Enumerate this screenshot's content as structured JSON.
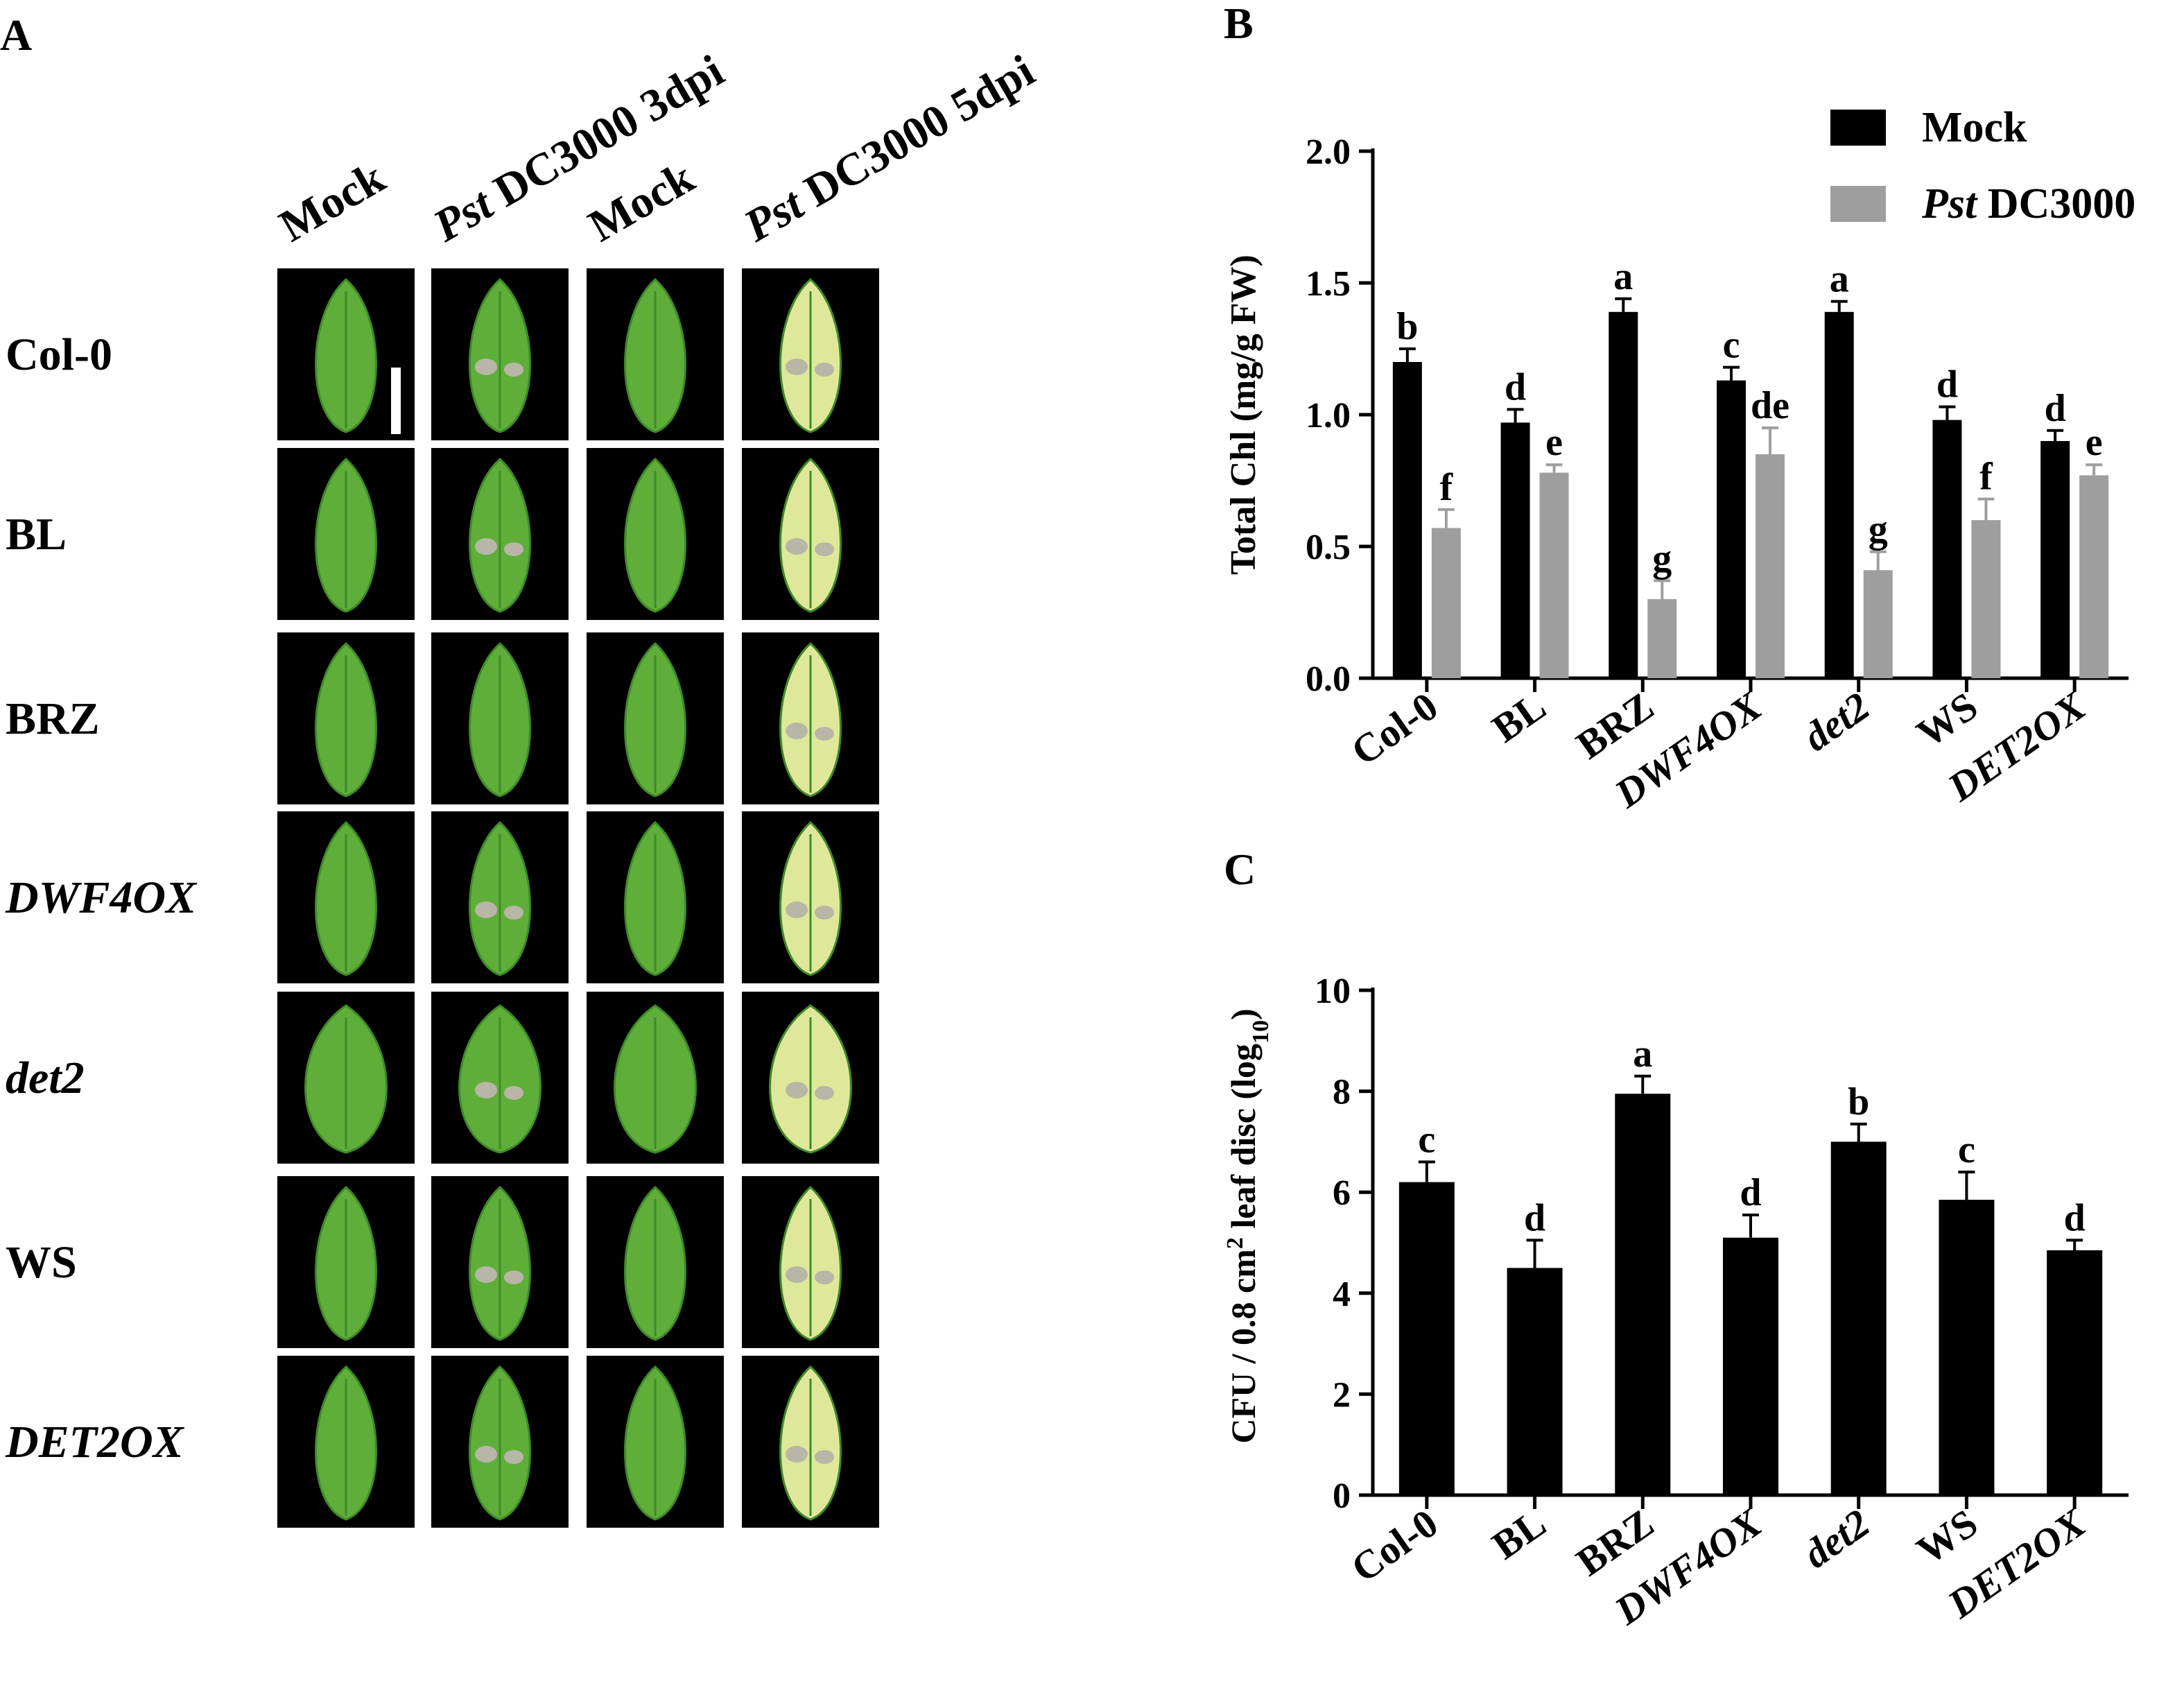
{
  "panels": {
    "A": {
      "label": "A",
      "columns": [
        {
          "prefix": "",
          "text": "Mock"
        },
        {
          "prefix": "Pst",
          "text": " DC3000 3dpi"
        },
        {
          "prefix": "",
          "text": "Mock"
        },
        {
          "prefix": "Pst",
          "text": " DC3000 5dpi"
        }
      ],
      "rows": [
        {
          "label": "Col-0",
          "italic": false,
          "lesions": [
            false,
            true,
            false,
            true
          ]
        },
        {
          "label": "BL",
          "italic": false,
          "lesions": [
            false,
            true,
            false,
            true
          ]
        },
        {
          "label": "BRZ",
          "italic": false,
          "lesions": [
            false,
            false,
            false,
            true
          ]
        },
        {
          "label": "DWF4OX",
          "italic": true,
          "lesions": [
            false,
            true,
            false,
            true
          ]
        },
        {
          "label": "det2",
          "italic": true,
          "lesions": [
            false,
            true,
            false,
            true
          ]
        },
        {
          "label": "WS",
          "italic": false,
          "lesions": [
            false,
            true,
            false,
            true
          ]
        },
        {
          "label": "DET2OX",
          "italic": true,
          "lesions": [
            false,
            true,
            false,
            true
          ]
        }
      ],
      "colors": {
        "background": "#000000",
        "leaf": "#5fae3a",
        "leaf_dark": "#3f8a28",
        "chlorotic": "#dfe89a",
        "lesion": "#b8b6a6"
      }
    },
    "B": {
      "label": "B"
    },
    "C": {
      "label": "C"
    }
  },
  "chart_data": [
    {
      "panel": "B",
      "type": "bar",
      "categories": [
        "Col-0",
        "BL",
        "BRZ",
        "DWF4OX",
        "det2",
        "WS",
        "DET2OX"
      ],
      "italic_categories": [
        "DWF4OX",
        "det2",
        "DET2OX"
      ],
      "ylabel": "Total Chl (mg/g FW)",
      "ylim": [
        0,
        2.0
      ],
      "yticks": [
        "0.0",
        "0.5",
        "1.0",
        "1.5",
        "2.0"
      ],
      "grid": false,
      "legend": {
        "placement": "top-right",
        "entries": [
          {
            "prefix": "",
            "text": "Mock",
            "color": "#000000"
          },
          {
            "prefix": "Pst",
            "text": " DC3000",
            "color": "#9e9e9e"
          }
        ]
      },
      "series": [
        {
          "name": "Mock",
          "color": "#000000",
          "values": [
            1.2,
            0.97,
            1.39,
            1.13,
            1.39,
            0.98,
            0.9
          ],
          "errors": [
            0.05,
            0.05,
            0.05,
            0.05,
            0.04,
            0.05,
            0.04
          ],
          "letters": [
            "b",
            "d",
            "a",
            "c",
            "a",
            "d",
            "d"
          ]
        },
        {
          "name": "Pst DC3000",
          "color": "#9e9e9e",
          "values": [
            0.57,
            0.78,
            0.3,
            0.85,
            0.41,
            0.6,
            0.77
          ],
          "errors": [
            0.07,
            0.03,
            0.07,
            0.1,
            0.07,
            0.08,
            0.04
          ],
          "letters": [
            "f",
            "e",
            "g",
            "de",
            "g",
            "f",
            "e"
          ]
        }
      ]
    },
    {
      "panel": "C",
      "type": "bar",
      "categories": [
        "Col-0",
        "BL",
        "BRZ",
        "DWF4OX",
        "det2",
        "WS",
        "DET2OX"
      ],
      "italic_categories": [
        "DWF4OX",
        "det2",
        "DET2OX"
      ],
      "ylabel_parts": [
        "CFU / 0.8 cm",
        "2",
        " leaf disc (log",
        "10",
        ")"
      ],
      "ylim": [
        0,
        10
      ],
      "yticks": [
        "0",
        "2",
        "4",
        "6",
        "8",
        "10"
      ],
      "grid": false,
      "series": [
        {
          "color": "#000000",
          "values": [
            6.2,
            4.5,
            7.95,
            5.1,
            7.0,
            5.85,
            4.85
          ],
          "errors": [
            0.4,
            0.55,
            0.35,
            0.45,
            0.35,
            0.55,
            0.2
          ],
          "letters": [
            "c",
            "d",
            "a",
            "d",
            "b",
            "c",
            "d"
          ]
        }
      ]
    }
  ]
}
